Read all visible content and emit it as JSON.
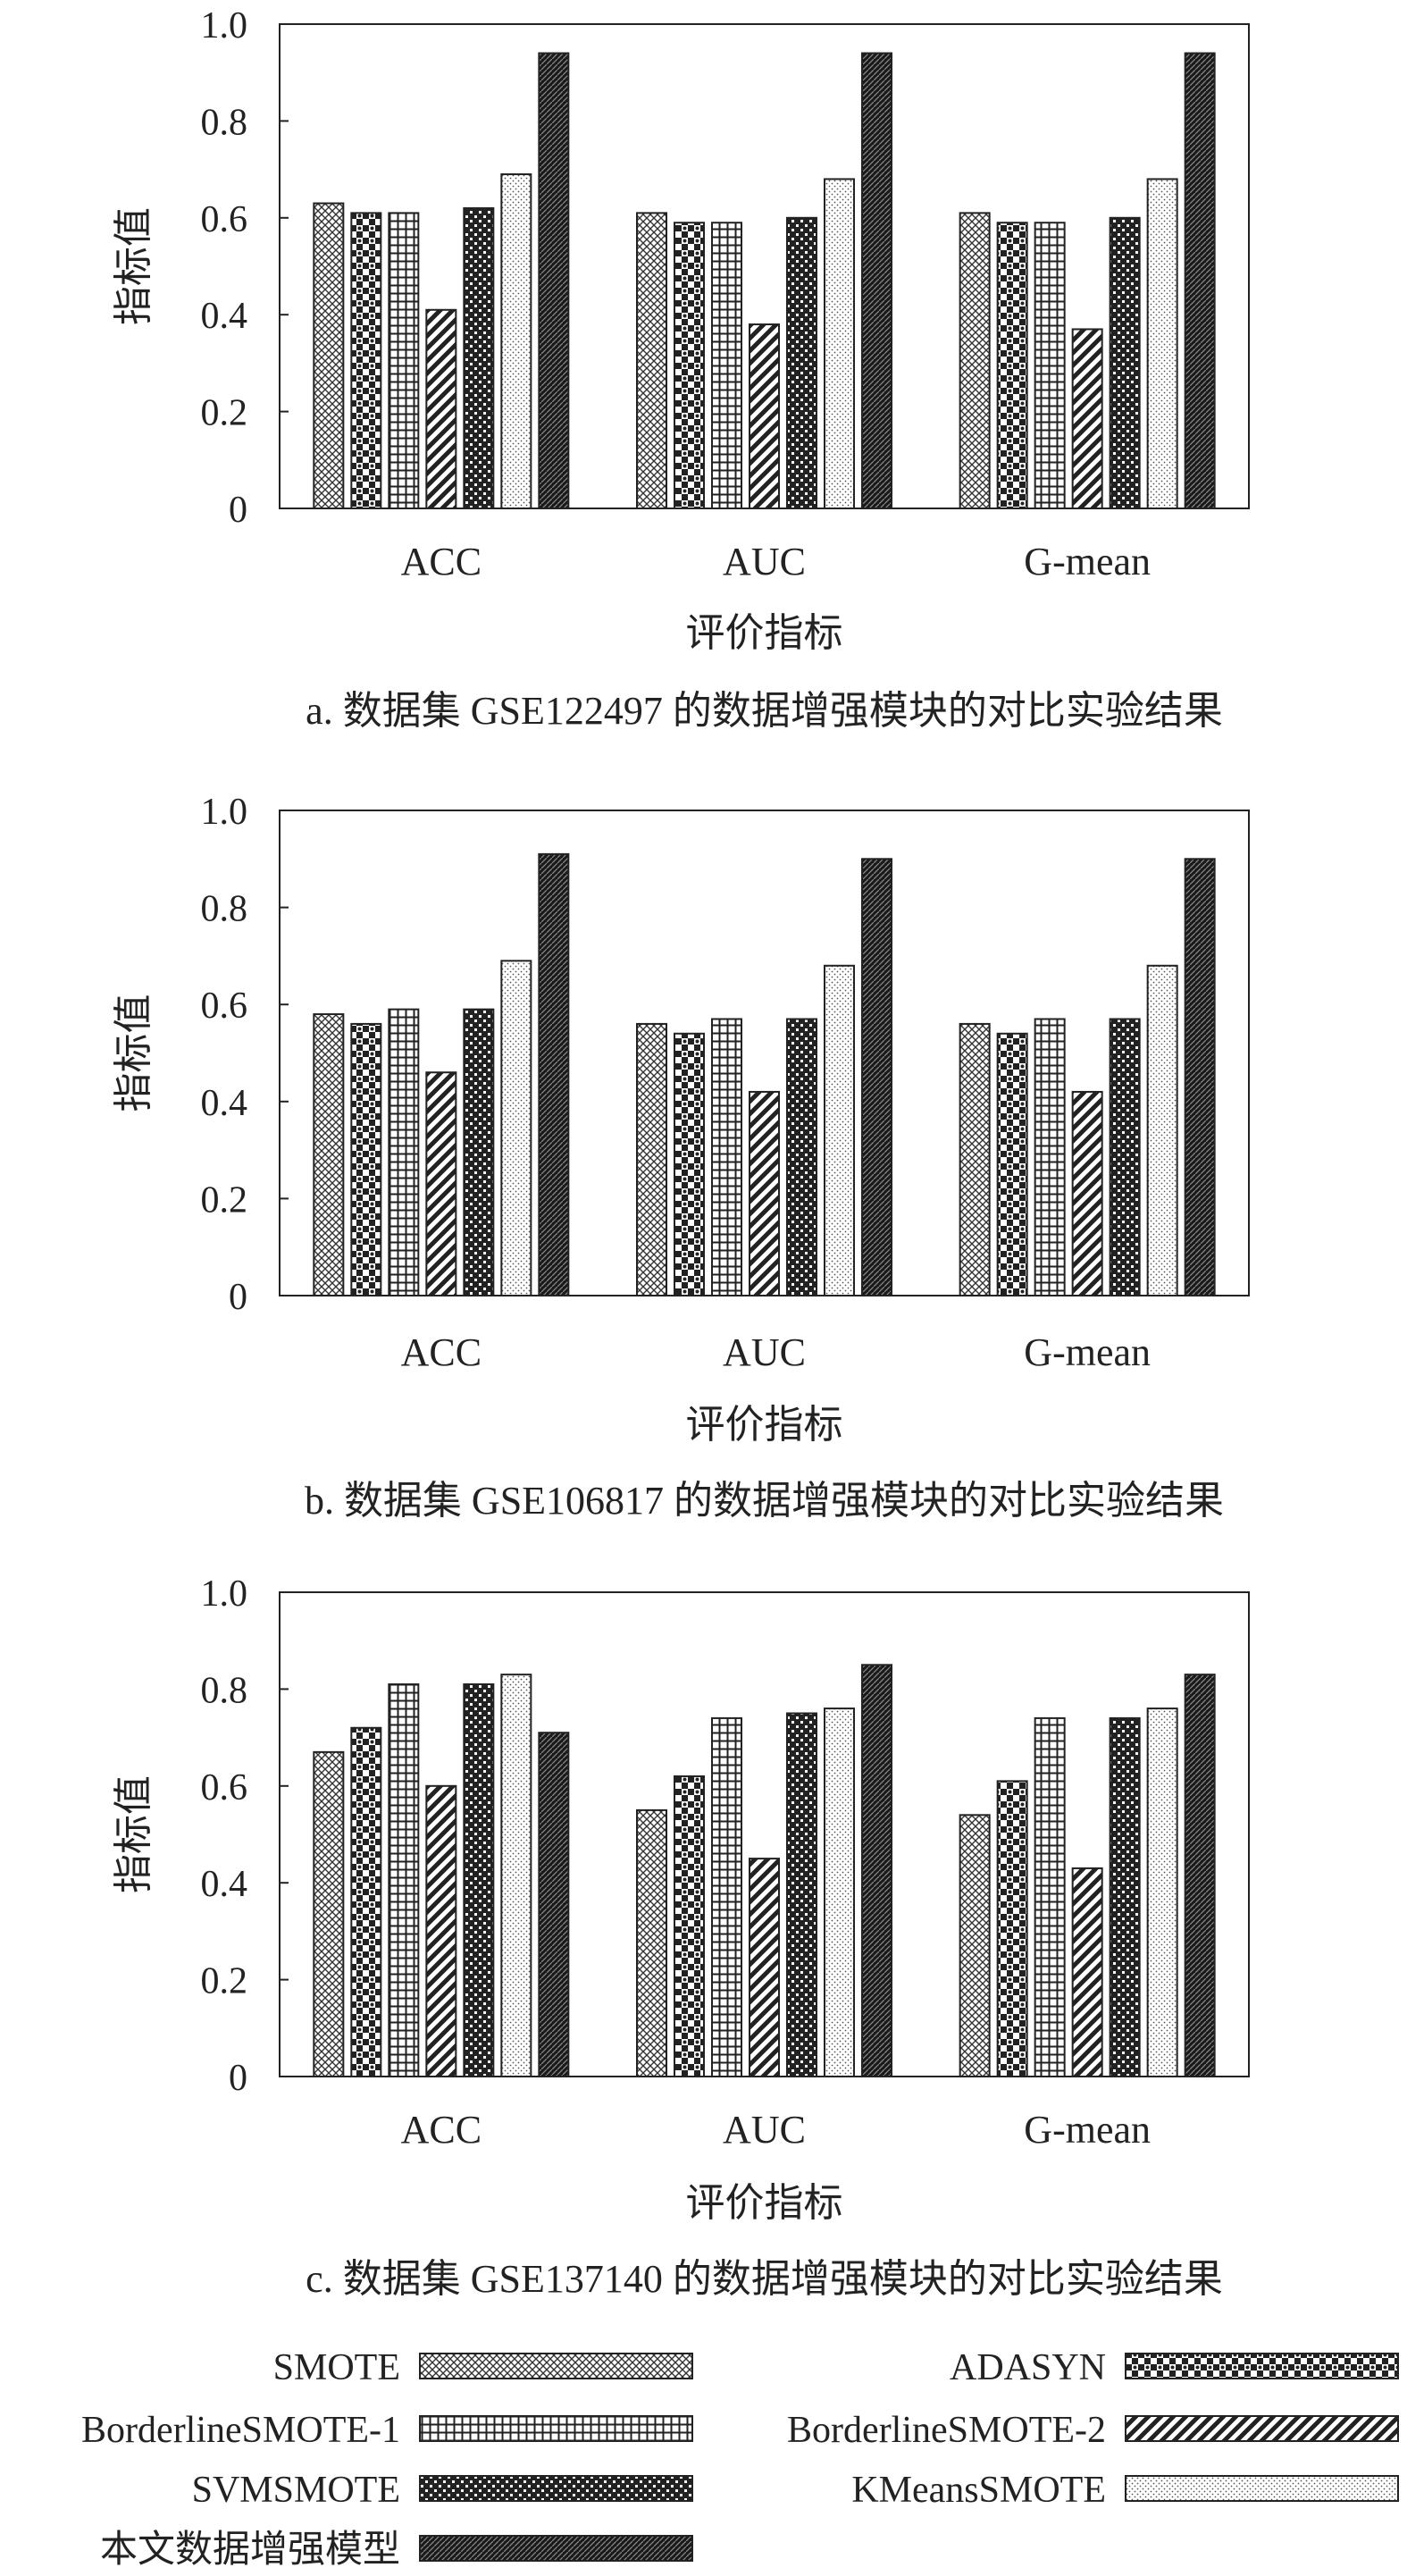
{
  "chart_data": [
    {
      "type": "bar",
      "title": "",
      "caption": "a. 数据集 GSE122497 的数据增强模块的对比实验结果",
      "xlabel": "评价指标",
      "ylabel": "指标值",
      "ylim": [
        0,
        1.0
      ],
      "yticks": [
        "0",
        "0.2",
        "0.4",
        "0.6",
        "0.8",
        "1.0"
      ],
      "grid": false,
      "categories": [
        "ACC",
        "AUC",
        "G-mean"
      ],
      "series": [
        {
          "name": "SMOTE",
          "values": [
            0.63,
            0.61,
            0.61
          ]
        },
        {
          "name": "ADASYN",
          "values": [
            0.61,
            0.59,
            0.59
          ]
        },
        {
          "name": "BorderlineSMOTE-1",
          "values": [
            0.61,
            0.59,
            0.59
          ]
        },
        {
          "name": "BorderlineSMOTE-2",
          "values": [
            0.41,
            0.38,
            0.37
          ]
        },
        {
          "name": "SVMSMOTE",
          "values": [
            0.62,
            0.6,
            0.6
          ]
        },
        {
          "name": "KMeansSMOTE",
          "values": [
            0.69,
            0.68,
            0.68
          ]
        },
        {
          "name": "本文数据增强模型",
          "values": [
            0.94,
            0.94,
            0.94
          ]
        }
      ]
    },
    {
      "type": "bar",
      "title": "",
      "caption": "b. 数据集 GSE106817 的数据增强模块的对比实验结果",
      "xlabel": "评价指标",
      "ylabel": "指标值",
      "ylim": [
        0,
        1.0
      ],
      "yticks": [
        "0",
        "0.2",
        "0.4",
        "0.6",
        "0.8",
        "1.0"
      ],
      "grid": false,
      "categories": [
        "ACC",
        "AUC",
        "G-mean"
      ],
      "series": [
        {
          "name": "SMOTE",
          "values": [
            0.58,
            0.56,
            0.56
          ]
        },
        {
          "name": "ADASYN",
          "values": [
            0.56,
            0.54,
            0.54
          ]
        },
        {
          "name": "BorderlineSMOTE-1",
          "values": [
            0.59,
            0.57,
            0.57
          ]
        },
        {
          "name": "BorderlineSMOTE-2",
          "values": [
            0.46,
            0.42,
            0.42
          ]
        },
        {
          "name": "SVMSMOTE",
          "values": [
            0.59,
            0.57,
            0.57
          ]
        },
        {
          "name": "KMeansSMOTE",
          "values": [
            0.69,
            0.68,
            0.68
          ]
        },
        {
          "name": "本文数据增强模型",
          "values": [
            0.91,
            0.9,
            0.9
          ]
        }
      ]
    },
    {
      "type": "bar",
      "title": "",
      "caption": "c. 数据集 GSE137140 的数据增强模块的对比实验结果",
      "xlabel": "评价指标",
      "ylabel": "指标值",
      "ylim": [
        0,
        1.0
      ],
      "yticks": [
        "0",
        "0.2",
        "0.4",
        "0.6",
        "0.8",
        "1.0"
      ],
      "grid": false,
      "categories": [
        "ACC",
        "AUC",
        "G-mean"
      ],
      "series": [
        {
          "name": "SMOTE",
          "values": [
            0.67,
            0.55,
            0.54
          ]
        },
        {
          "name": "ADASYN",
          "values": [
            0.72,
            0.62,
            0.61
          ]
        },
        {
          "name": "BorderlineSMOTE-1",
          "values": [
            0.81,
            0.74,
            0.74
          ]
        },
        {
          "name": "BorderlineSMOTE-2",
          "values": [
            0.6,
            0.45,
            0.43
          ]
        },
        {
          "name": "SVMSMOTE",
          "values": [
            0.81,
            0.75,
            0.74
          ]
        },
        {
          "name": "KMeansSMOTE",
          "values": [
            0.83,
            0.76,
            0.76
          ]
        },
        {
          "name": "本文数据增强模型",
          "values": [
            0.71,
            0.85,
            0.83
          ]
        }
      ]
    }
  ],
  "legend": {
    "placement": "bottom",
    "items": [
      {
        "label": "SMOTE",
        "pattern": "crosshatch"
      },
      {
        "label": "ADASYN",
        "pattern": "checker"
      },
      {
        "label": "BorderlineSMOTE-1",
        "pattern": "grid"
      },
      {
        "label": "BorderlineSMOTE-2",
        "pattern": "diagonal"
      },
      {
        "label": "SVMSMOTE",
        "pattern": "dots"
      },
      {
        "label": "KMeansSMOTE",
        "pattern": "stipple"
      },
      {
        "label": "本文数据增强模型",
        "pattern": "dense"
      }
    ]
  },
  "colors": {
    "ink": "#222222",
    "background": "#ffffff"
  }
}
